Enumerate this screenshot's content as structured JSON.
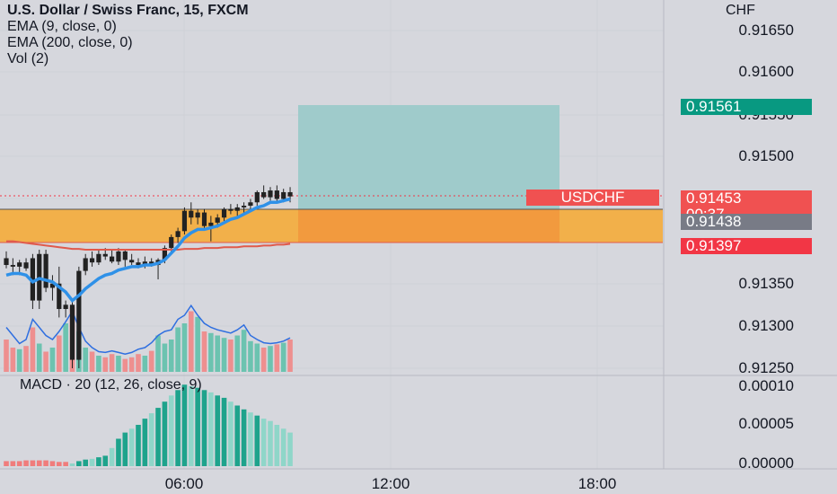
{
  "legend": {
    "title": "U.S. Dollar / Swiss Franc, 15, FXCM",
    "ema9": "EMA (9, close, 0)",
    "ema200": "EMA (200, close, 0)",
    "vol": "Vol (2)"
  },
  "macd_label": "MACD · 20 (12, 26, close, 9)",
  "axis": {
    "currency": "CHF",
    "price_ticks": [
      "0.91650",
      "0.91600",
      "0.91550",
      "0.91500",
      "0.91350",
      "0.91300",
      "0.91250"
    ],
    "macd_ticks": [
      "0.00010",
      "0.00005",
      "0.00000"
    ],
    "time_ticks": [
      "06:00",
      "12:00",
      "18:00"
    ]
  },
  "tags": {
    "target_price": "0.91561",
    "symbol": "USDCHF",
    "last_price": "0.91453",
    "countdown": "00:37",
    "entry_price": "0.91438",
    "stop_price": "0.91397"
  },
  "colors": {
    "background": "#d6d7dd",
    "up": "#089981",
    "down": "#f23645",
    "ema9": "#2f91e8",
    "ema200": "#e05a4c",
    "zone": "#f2b04a",
    "target": "#9fcbcb"
  },
  "chart_data": {
    "type": "candlestick",
    "price_range": [
      0.9125,
      0.9167
    ],
    "macd_range": [
      -1e-05,
      0.00011
    ],
    "candles": [
      [
        0.9138,
        0.91388,
        0.91368,
        0.91372
      ],
      [
        0.91372,
        0.9138,
        0.9136,
        0.9137
      ],
      [
        0.9137,
        0.91378,
        0.9136,
        0.91375
      ],
      [
        0.91375,
        0.9138,
        0.91365,
        0.91368
      ],
      [
        0.9138,
        0.91385,
        0.9132,
        0.9133
      ],
      [
        0.9133,
        0.9139,
        0.9132,
        0.91385
      ],
      [
        0.91385,
        0.9139,
        0.9134,
        0.91345
      ],
      [
        0.91345,
        0.9136,
        0.9133,
        0.9135
      ],
      [
        0.9135,
        0.9137,
        0.9131,
        0.9132
      ],
      [
        0.9132,
        0.9133,
        0.9131,
        0.91325
      ],
      [
        0.91325,
        0.9133,
        0.9125,
        0.9126
      ],
      [
        0.9126,
        0.9137,
        0.9125,
        0.91365
      ],
      [
        0.91365,
        0.91385,
        0.9136,
        0.9138
      ],
      [
        0.9138,
        0.91388,
        0.9137,
        0.91375
      ],
      [
        0.91375,
        0.9139,
        0.91372,
        0.91385
      ],
      [
        0.91385,
        0.91392,
        0.91378,
        0.91382
      ],
      [
        0.91382,
        0.9139,
        0.91374,
        0.91376
      ],
      [
        0.91376,
        0.91392,
        0.91372,
        0.91388
      ],
      [
        0.91388,
        0.9139,
        0.9137,
        0.91378
      ],
      [
        0.91378,
        0.91385,
        0.91372,
        0.91375
      ],
      [
        0.91375,
        0.9138,
        0.91368,
        0.91372
      ],
      [
        0.91372,
        0.91382,
        0.91368,
        0.91376
      ],
      [
        0.91376,
        0.9138,
        0.9137,
        0.91372
      ],
      [
        0.91372,
        0.9138,
        0.91355,
        0.91378
      ],
      [
        0.91378,
        0.91395,
        0.91374,
        0.91392
      ],
      [
        0.91392,
        0.91408,
        0.91388,
        0.91405
      ],
      [
        0.91405,
        0.91416,
        0.91398,
        0.91412
      ],
      [
        0.91412,
        0.9144,
        0.91408,
        0.91436
      ],
      [
        0.91436,
        0.91446,
        0.9142,
        0.91428
      ],
      [
        0.91428,
        0.91438,
        0.9142,
        0.91434
      ],
      [
        0.91434,
        0.91438,
        0.91414,
        0.91418
      ],
      [
        0.91418,
        0.9143,
        0.914,
        0.91422
      ],
      [
        0.91422,
        0.91432,
        0.91416,
        0.91428
      ],
      [
        0.91428,
        0.9144,
        0.91424,
        0.91438
      ],
      [
        0.91438,
        0.91444,
        0.91432,
        0.91436
      ],
      [
        0.91436,
        0.91444,
        0.9143,
        0.9144
      ],
      [
        0.9144,
        0.91446,
        0.91434,
        0.91442
      ],
      [
        0.91442,
        0.9145,
        0.91438,
        0.91446
      ],
      [
        0.91446,
        0.9146,
        0.91442,
        0.91458
      ],
      [
        0.91458,
        0.91466,
        0.9145,
        0.91452
      ],
      [
        0.91452,
        0.91464,
        0.91448,
        0.9146
      ],
      [
        0.9146,
        0.91466,
        0.91446,
        0.9145
      ],
      [
        0.9145,
        0.91462,
        0.91446,
        0.91458
      ],
      [
        0.91458,
        0.91464,
        0.91446,
        0.91453
      ]
    ],
    "ema9": [
      0.9136,
      0.91362,
      0.91362,
      0.9136,
      0.91352,
      0.91356,
      0.91354,
      0.91352,
      0.91346,
      0.9134,
      0.9133,
      0.91336,
      0.91344,
      0.9135,
      0.91356,
      0.9136,
      0.91362,
      0.91366,
      0.91368,
      0.9137,
      0.9137,
      0.91372,
      0.91372,
      0.91374,
      0.91378,
      0.91386,
      0.91394,
      0.91404,
      0.9141,
      0.91414,
      0.91414,
      0.91416,
      0.91418,
      0.91422,
      0.91426,
      0.91428,
      0.91432,
      0.91436,
      0.9144,
      0.91442,
      0.91446,
      0.91446,
      0.91448,
      0.9145
    ],
    "ema200": [
      0.914,
      0.914,
      0.91399,
      0.91398,
      0.91397,
      0.91396,
      0.91395,
      0.91394,
      0.91393,
      0.91392,
      0.91391,
      0.91391,
      0.9139,
      0.9139,
      0.9139,
      0.9139,
      0.9139,
      0.9139,
      0.9139,
      0.9139,
      0.9139,
      0.9139,
      0.9139,
      0.9139,
      0.9139,
      0.9139,
      0.9139,
      0.91391,
      0.91391,
      0.91391,
      0.91392,
      0.91392,
      0.91392,
      0.91393,
      0.91393,
      0.91393,
      0.91394,
      0.91394,
      0.91394,
      0.91395,
      0.91395,
      0.91396,
      0.91396,
      0.91397
    ],
    "volume": [
      40,
      30,
      28,
      32,
      55,
      35,
      25,
      30,
      45,
      60,
      80,
      50,
      30,
      25,
      20,
      18,
      22,
      20,
      16,
      18,
      22,
      20,
      26,
      45,
      35,
      40,
      55,
      60,
      75,
      68,
      50,
      48,
      45,
      42,
      40,
      45,
      52,
      38,
      35,
      30,
      32,
      34,
      36,
      40
    ],
    "vol_line": [
      55,
      45,
      35,
      40,
      65,
      55,
      45,
      40,
      50,
      62,
      75,
      55,
      38,
      30,
      25,
      24,
      26,
      24,
      22,
      24,
      28,
      30,
      36,
      45,
      50,
      52,
      65,
      70,
      82,
      70,
      60,
      55,
      52,
      50,
      48,
      52,
      58,
      45,
      40,
      36,
      35,
      36,
      38,
      42
    ],
    "macd_hist": [
      3e-06,
      3e-06,
      3e-06,
      4e-06,
      4e-06,
      4e-06,
      4e-06,
      3e-06,
      2e-06,
      2e-06,
      0.0,
      3e-06,
      5e-06,
      6e-06,
      8e-06,
      1e-05,
      2e-05,
      3.2e-05,
      4e-05,
      4.5e-05,
      5e-05,
      5.8e-05,
      6.5e-05,
      7.2e-05,
      8e-05,
      8.8e-05,
      9.5e-05,
      0.000102,
      0.0001,
      9.8e-05,
      9.5e-05,
      9.2e-05,
      8.8e-05,
      8.5e-05,
      8e-05,
      7.5e-05,
      7e-05,
      6.6e-05,
      6.2e-05,
      5.8e-05,
      5.5e-05,
      5e-05,
      4.5e-05,
      4e-05
    ],
    "macd_hist_color_breaks": {
      "down_until": 10,
      "light_after": 38
    }
  }
}
